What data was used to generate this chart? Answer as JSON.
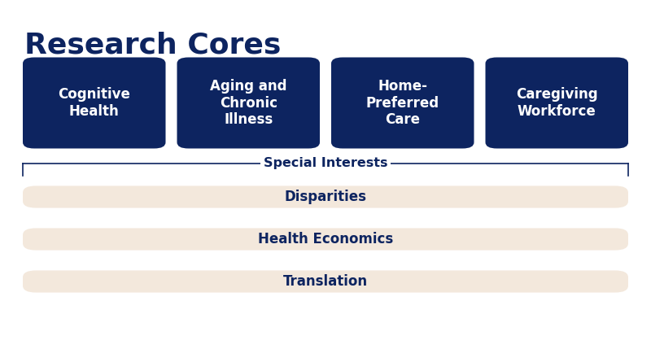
{
  "title": "Research Cores",
  "title_color": "#0d2460",
  "title_fontsize": 26,
  "title_fontweight": "bold",
  "background_color": "#ffffff",
  "dark_blue": "#0d2460",
  "light_beige": "#f3e8dc",
  "white": "#ffffff",
  "research_cores": [
    "Cognitive\nHealth",
    "Aging and\nChronic\nIllness",
    "Home-\nPreferred\nCare",
    "Caregiving\nWorkforce"
  ],
  "special_interests_label": "Special Interests",
  "special_interests": [
    "Disparities",
    "Health Economics",
    "Translation"
  ],
  "fig_width": 8.0,
  "fig_height": 4.29,
  "dpi": 100
}
